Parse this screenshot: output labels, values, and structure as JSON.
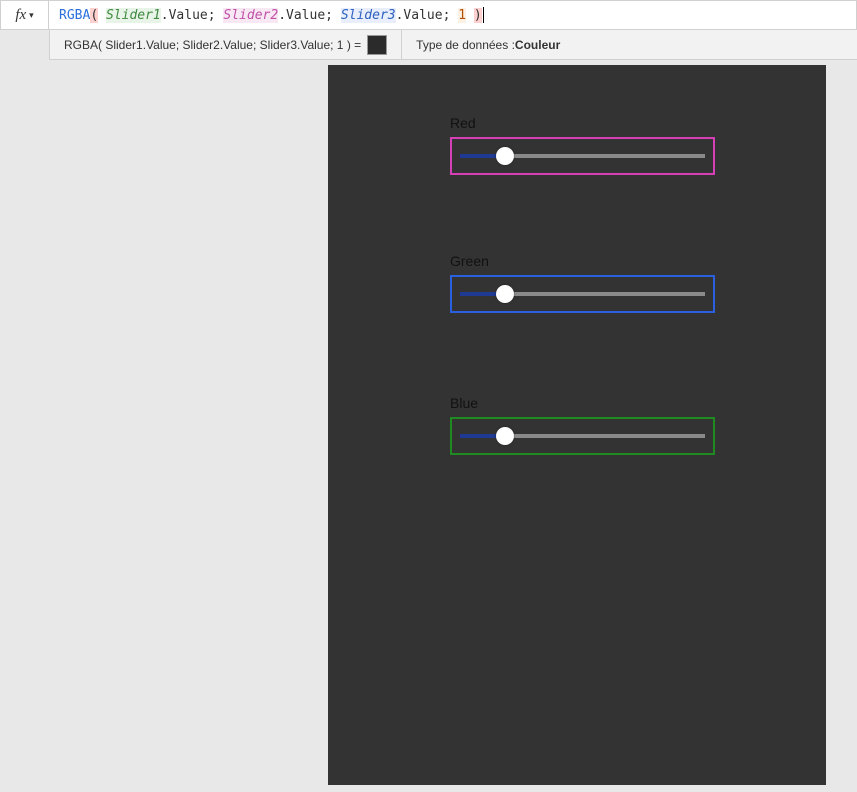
{
  "formula_bar": {
    "fx_label": "fx",
    "tokens": {
      "func": "RGBA",
      "open_paren": "(",
      "close_paren": ")",
      "slider1": "Slider1",
      "slider2": "Slider2",
      "slider3": "Slider3",
      "prop": ".Value",
      "sep": "; ",
      "alpha": "1"
    }
  },
  "result_bar": {
    "expression": "RGBA( Slider1.Value; Slider2.Value; Slider3.Value; 1 )  =",
    "swatch_color": "#2b2b2b",
    "data_type_label": "Type de données :",
    "data_type_value": "Couleur"
  },
  "canvas": {
    "background": "#333333",
    "sliders": [
      {
        "label": "Red",
        "border_color": "#d63fb5",
        "fill_percent": 18,
        "fill_color": "#1f3a93"
      },
      {
        "label": "Green",
        "border_color": "#2a5fe0",
        "fill_percent": 18,
        "fill_color": "#1f3a93"
      },
      {
        "label": "Blue",
        "border_color": "#1f8a1f",
        "fill_percent": 18,
        "fill_color": "#1f3a93"
      }
    ]
  }
}
